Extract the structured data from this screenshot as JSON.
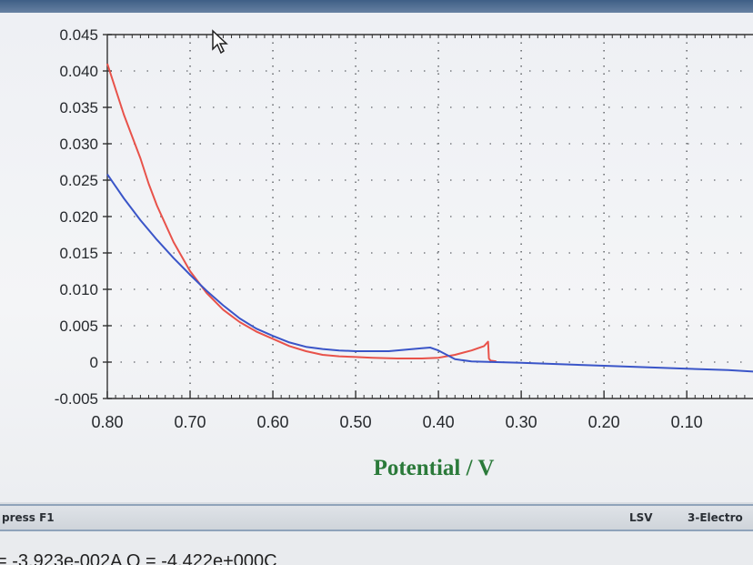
{
  "window": {
    "title_bar_color": "#4f6f96"
  },
  "chart_data": {
    "type": "line",
    "xlabel": "Potential / V",
    "ylabel": "",
    "xlim": [
      0.8,
      0.02
    ],
    "ylim": [
      -0.005,
      0.045
    ],
    "x_ticks": [
      "0.80",
      "0.70",
      "0.60",
      "0.50",
      "0.40",
      "0.30",
      "0.20",
      "0.10"
    ],
    "x_tick_values": [
      0.8,
      0.7,
      0.6,
      0.5,
      0.4,
      0.3,
      0.2,
      0.1
    ],
    "y_ticks": [
      "0.045",
      "0.040",
      "0.035",
      "0.030",
      "0.025",
      "0.020",
      "0.015",
      "0.010",
      "0.005",
      "0",
      "-0.005"
    ],
    "y_tick_values": [
      0.045,
      0.04,
      0.035,
      0.03,
      0.025,
      0.02,
      0.015,
      0.01,
      0.005,
      0,
      -0.005
    ],
    "grid": true,
    "legend": "none",
    "series": [
      {
        "color": "#e8524a",
        "x": [
          0.8,
          0.78,
          0.76,
          0.75,
          0.74,
          0.72,
          0.7,
          0.68,
          0.66,
          0.64,
          0.62,
          0.6,
          0.58,
          0.56,
          0.54,
          0.52,
          0.5,
          0.48,
          0.45,
          0.42,
          0.4,
          0.38,
          0.36,
          0.345,
          0.34,
          0.339,
          0.337,
          0.33
        ],
        "y": [
          0.041,
          0.034,
          0.028,
          0.0245,
          0.0215,
          0.0165,
          0.0125,
          0.0095,
          0.0072,
          0.0055,
          0.0042,
          0.0032,
          0.0022,
          0.0015,
          0.001,
          0.0008,
          0.0007,
          0.0006,
          0.0005,
          0.0005,
          0.0006,
          0.001,
          0.0016,
          0.0022,
          0.0028,
          0.0005,
          0.0002,
          0.0001
        ]
      },
      {
        "color": "#3a55c8",
        "x": [
          0.8,
          0.78,
          0.76,
          0.74,
          0.72,
          0.7,
          0.68,
          0.66,
          0.64,
          0.62,
          0.6,
          0.58,
          0.56,
          0.54,
          0.52,
          0.5,
          0.48,
          0.46,
          0.44,
          0.42,
          0.41,
          0.4,
          0.39,
          0.38,
          0.36,
          0.33,
          0.3,
          0.25,
          0.2,
          0.15,
          0.1,
          0.05,
          0.02
        ],
        "y": [
          0.0258,
          0.0225,
          0.0195,
          0.0168,
          0.0143,
          0.012,
          0.0098,
          0.0078,
          0.006,
          0.0046,
          0.0036,
          0.0027,
          0.0021,
          0.0018,
          0.0016,
          0.0015,
          0.0015,
          0.0015,
          0.0017,
          0.0019,
          0.002,
          0.0016,
          0.001,
          0.0004,
          0.0001,
          0.0,
          -0.0001,
          -0.0003,
          -0.0005,
          -0.0007,
          -0.0009,
          -0.0011,
          -0.0013
        ]
      }
    ]
  },
  "status_bar": {
    "help_text": "press F1",
    "mode": "LSV",
    "electrode": "3-Electro"
  },
  "readout": "= -3.923e-002A   Q = -4.422e+000C"
}
